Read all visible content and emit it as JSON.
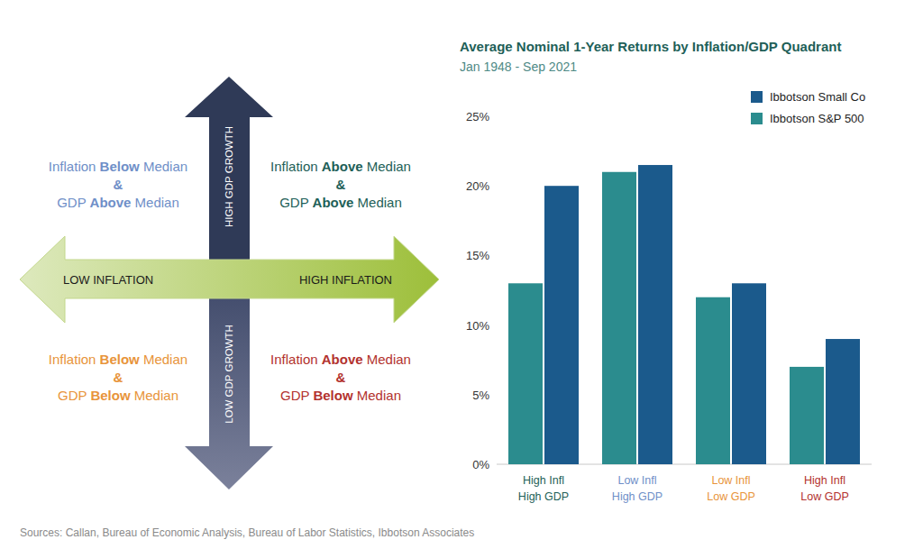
{
  "chart_data": {
    "type": "bar",
    "title": "Average Nominal 1-Year Returns by Inflation/GDP Quadrant",
    "subtitle": "Jan 1948 - Sep 2021",
    "categories": [
      "High Infl\nHigh GDP",
      "Low Infl\nHigh GDP",
      "Low Infl\nLow GDP",
      "High Infl\nLow GDP"
    ],
    "series": [
      {
        "name": "Ibbotson S&P 500",
        "color": "#2b8c8e",
        "values": [
          13,
          21,
          12,
          7
        ]
      },
      {
        "name": "Ibbotson Small Co",
        "color": "#1b5a8c",
        "values": [
          20,
          21.5,
          13,
          9
        ]
      }
    ],
    "ylim": [
      0,
      25
    ],
    "yticks": [
      {
        "value": 0,
        "label": "0%"
      },
      {
        "value": 5,
        "label": "5%"
      },
      {
        "value": 10,
        "label": "10%"
      },
      {
        "value": 15,
        "label": "15%"
      },
      {
        "value": 20,
        "label": "20%"
      },
      {
        "value": 25,
        "label": "25%"
      }
    ],
    "grid": false,
    "legend": "top-right"
  },
  "diagram": {
    "axes": {
      "up": "HIGH GDP GROWTH",
      "down": "LOW GDP GROWTH",
      "left": "LOW INFLATION",
      "right": "HIGH INFLATION"
    },
    "quadrants": [
      {
        "position": "top-left",
        "color": "#6f8fc8",
        "line1": [
          "Inflation ",
          "Below",
          " Median"
        ],
        "amp": "&",
        "line2": [
          "GDP ",
          "Above",
          " Median"
        ]
      },
      {
        "position": "top-right",
        "color": "#1e5f58",
        "line1": [
          "Inflation ",
          "Above",
          " Median"
        ],
        "amp": "&",
        "line2": [
          "GDP ",
          "Above",
          " Median"
        ]
      },
      {
        "position": "bottom-left",
        "color": "#e8943a",
        "line1": [
          "Inflation ",
          "Below",
          " Median"
        ],
        "amp": "&",
        "line2": [
          "GDP ",
          "Below",
          " Median"
        ]
      },
      {
        "position": "bottom-right",
        "color": "#b3322e",
        "line1": [
          "Inflation ",
          "Above",
          " Median"
        ],
        "amp": "&",
        "line2": [
          "GDP ",
          "Below",
          " Median"
        ]
      }
    ]
  },
  "footer": {
    "sources": "Sources: Callan, Bureau of Economic Analysis, Bureau of Labor Statistics, Ibbotson Associates"
  }
}
